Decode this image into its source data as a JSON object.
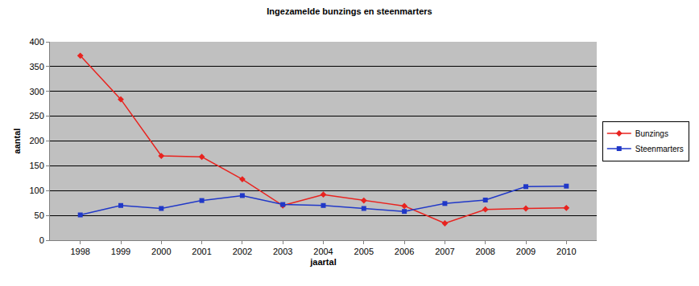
{
  "chart_data": {
    "type": "line",
    "title": "Ingezamelde bunzings en steenmarters",
    "x_label": "jaartal",
    "y_label": "aantal",
    "categories": [
      "1998",
      "1999",
      "2000",
      "2001",
      "2002",
      "2003",
      "2004",
      "2005",
      "2006",
      "2007",
      "2008",
      "2009",
      "2010"
    ],
    "series": [
      {
        "name": "Bunzings",
        "color": "#e8231f",
        "marker": "diamond",
        "values": [
          372,
          284,
          170,
          168,
          123,
          70,
          92,
          80,
          69,
          34,
          62,
          64,
          65
        ]
      },
      {
        "name": "Steenmarters",
        "color": "#2038c8",
        "marker": "square",
        "values": [
          51,
          70,
          64,
          80,
          90,
          72,
          70,
          64,
          58,
          74,
          81,
          108,
          109
        ]
      }
    ],
    "ylim": [
      0,
      400
    ],
    "yticks": [
      0,
      50,
      100,
      150,
      200,
      250,
      300,
      350,
      400
    ],
    "grid": true,
    "legend": "right"
  }
}
